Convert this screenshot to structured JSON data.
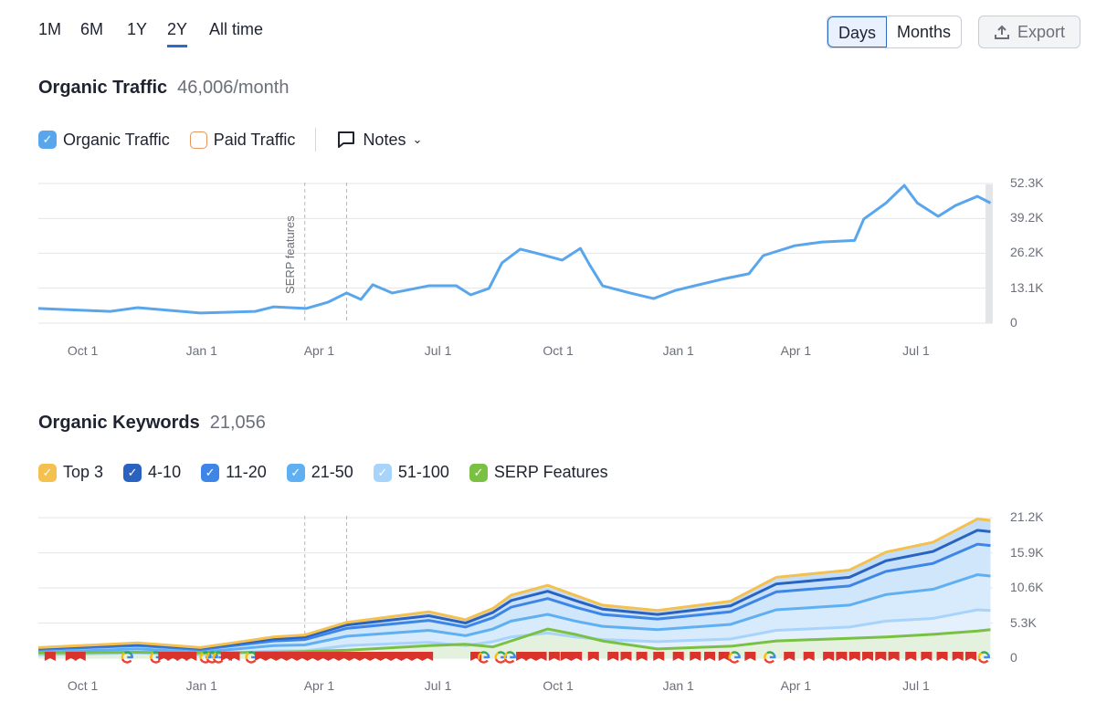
{
  "ranges": [
    "1M",
    "6M",
    "1Y",
    "2Y",
    "All time"
  ],
  "active_range": "2Y",
  "view_toggle": {
    "days": "Days",
    "months": "Months",
    "active": "Days"
  },
  "export_label": "Export",
  "traffic": {
    "title": "Organic Traffic",
    "value": "46,006/month",
    "legend": {
      "organic": "Organic Traffic",
      "paid": "Paid Traffic",
      "notes": "Notes"
    },
    "annotation": "SERP features"
  },
  "keywords": {
    "title": "Organic Keywords",
    "value": "21,056",
    "legend": [
      "Top 3",
      "4-10",
      "11-20",
      "21-50",
      "51-100",
      "SERP Features"
    ]
  },
  "colors": {
    "accent": "#2b6cc4",
    "traffic": "#5aa6ec",
    "top3": "#f4c04e",
    "k4_10": "#2a62c0",
    "k11_20": "#3d86e8",
    "k21_50": "#5fb0f2",
    "k51_100": "#a8d3fb",
    "serp": "#7ac143",
    "flag": "#d9342b"
  },
  "chart_data": [
    {
      "type": "line",
      "title": "Organic Traffic",
      "x_unit": "days from start",
      "x_ticks": [
        {
          "day": 34,
          "label": "Oct 1"
        },
        {
          "day": 125,
          "label": "Jan 1"
        },
        {
          "day": 215,
          "label": "Apr 1"
        },
        {
          "day": 306,
          "label": "Jul 1"
        },
        {
          "day": 398,
          "label": "Oct 1"
        },
        {
          "day": 490,
          "label": "Jan 1"
        },
        {
          "day": 580,
          "label": "Apr 1"
        },
        {
          "day": 672,
          "label": "Jul 1"
        }
      ],
      "y_ticks": [
        {
          "v": 0,
          "label": "0"
        },
        {
          "v": 13.1,
          "label": "13.1K"
        },
        {
          "v": 26.2,
          "label": "26.2K"
        },
        {
          "v": 39.2,
          "label": "39.2K"
        },
        {
          "v": 52.3,
          "label": "52.3K"
        }
      ],
      "ylim": [
        0,
        52.3
      ],
      "y_unit": "thousands",
      "notes_days": [
        204,
        236
      ],
      "series": [
        {
          "name": "Organic Traffic",
          "points": [
            [
              0,
              5.5
            ],
            [
              55,
              4.4
            ],
            [
              76,
              5.8
            ],
            [
              124,
              3.8
            ],
            [
              166,
              4.4
            ],
            [
              180,
              6.1
            ],
            [
              205,
              5.5
            ],
            [
              222,
              7.9
            ],
            [
              236,
              11.3
            ],
            [
              247,
              8.9
            ],
            [
              256,
              14.4
            ],
            [
              271,
              11.3
            ],
            [
              299,
              14
            ],
            [
              320,
              14
            ],
            [
              331,
              10.6
            ],
            [
              345,
              13
            ],
            [
              355,
              22.6
            ],
            [
              369,
              27.7
            ],
            [
              383,
              26
            ],
            [
              401,
              23.6
            ],
            [
              415,
              28
            ],
            [
              422,
              21.9
            ],
            [
              432,
              14
            ],
            [
              453,
              11.3
            ],
            [
              471,
              9.2
            ],
            [
              488,
              12.3
            ],
            [
              523,
              16.4
            ],
            [
              544,
              18.5
            ],
            [
              555,
              25.3
            ],
            [
              579,
              29
            ],
            [
              600,
              30.4
            ],
            [
              625,
              31
            ],
            [
              632,
              39
            ],
            [
              649,
              45
            ],
            [
              663,
              51.6
            ],
            [
              673,
              45
            ],
            [
              689,
              40
            ],
            [
              702,
              44
            ],
            [
              719,
              47.5
            ],
            [
              729,
              45
            ]
          ]
        }
      ]
    },
    {
      "type": "area",
      "title": "Organic Keywords",
      "stacked": true,
      "y_unit": "thousands",
      "ylim": [
        0,
        21.2
      ],
      "y_ticks": [
        {
          "v": 0,
          "label": "0"
        },
        {
          "v": 5.3,
          "label": "5.3K"
        },
        {
          "v": 10.6,
          "label": "10.6K"
        },
        {
          "v": 15.9,
          "label": "15.9K"
        },
        {
          "v": 21.2,
          "label": "21.2K"
        }
      ],
      "x_ticks": [
        {
          "day": 34,
          "label": "Oct 1"
        },
        {
          "day": 125,
          "label": "Jan 1"
        },
        {
          "day": 215,
          "label": "Apr 1"
        },
        {
          "day": 306,
          "label": "Jul 1"
        },
        {
          "day": 398,
          "label": "Oct 1"
        },
        {
          "day": 490,
          "label": "Jan 1"
        },
        {
          "day": 580,
          "label": "Apr 1"
        },
        {
          "day": 672,
          "label": "Jul 1"
        }
      ],
      "days": [
        0,
        76,
        124,
        180,
        204,
        236,
        299,
        327,
        348,
        362,
        390,
        411,
        432,
        474,
        530,
        565,
        621,
        649,
        685,
        719,
        729
      ],
      "series": [
        {
          "name": "51-100",
          "color": "k51_100",
          "values": [
            0.5,
            0.8,
            0.5,
            1.1,
            1.1,
            1.9,
            2.4,
            1.9,
            2.5,
            3.2,
            3.8,
            3.2,
            2.8,
            2.5,
            2.9,
            4.2,
            4.7,
            5.6,
            6.0,
            7.3,
            7.2
          ]
        },
        {
          "name": "21-50",
          "color": "k21_50",
          "values": [
            0.4,
            0.6,
            0.4,
            0.8,
            0.9,
            1.4,
            1.8,
            1.5,
            1.9,
            2.4,
            2.8,
            2.4,
            2.0,
            1.8,
            2.2,
            3.1,
            3.3,
            4.0,
            4.4,
            5.3,
            5.2
          ]
        },
        {
          "name": "11-20",
          "color": "k11_20",
          "values": [
            0.4,
            0.5,
            0.4,
            0.7,
            0.8,
            1.2,
            1.5,
            1.3,
            1.7,
            2.1,
            2.4,
            2.1,
            1.8,
            1.6,
            1.9,
            2.7,
            2.9,
            3.5,
            3.9,
            4.6,
            4.6
          ]
        },
        {
          "name": "4-10",
          "color": "k4_10",
          "values": [
            0.2,
            0.2,
            0.2,
            0.3,
            0.4,
            0.5,
            0.7,
            0.6,
            0.8,
            1.0,
            1.1,
            1.0,
            0.8,
            0.7,
            0.9,
            1.2,
            1.3,
            1.6,
            1.8,
            2.1,
            2.1
          ]
        },
        {
          "name": "Top 3",
          "color": "top3",
          "values": [
            0.1,
            0.2,
            0.1,
            0.3,
            0.3,
            0.4,
            0.6,
            0.5,
            0.6,
            0.8,
            0.9,
            0.8,
            0.6,
            0.6,
            0.7,
            1.0,
            1.1,
            1.3,
            1.4,
            1.7,
            1.7
          ]
        }
      ],
      "serp": {
        "name": "SERP Features",
        "values": [
          0.8,
          0.9,
          0.8,
          0.9,
          1.0,
          1.2,
          1.9,
          2.1,
          1.7,
          2.6,
          4.4,
          3.6,
          2.6,
          1.4,
          1.8,
          2.6,
          3.0,
          3.2,
          3.6,
          4.1,
          4.3
        ]
      },
      "markers": [
        [
          9,
          "flag"
        ],
        [
          25,
          "flag"
        ],
        [
          32,
          "flag"
        ],
        [
          68,
          "google"
        ],
        [
          90,
          "google"
        ],
        [
          96,
          "flag"
        ],
        [
          103,
          "flag"
        ],
        [
          110,
          "flag"
        ],
        [
          117,
          "flag"
        ],
        [
          128,
          "google"
        ],
        [
          133,
          "google"
        ],
        [
          138,
          "google"
        ],
        [
          144,
          "flag"
        ],
        [
          150,
          "flag"
        ],
        [
          163,
          "google"
        ],
        [
          170,
          "flag"
        ],
        [
          178,
          "flag"
        ],
        [
          186,
          "flag"
        ],
        [
          194,
          "flag"
        ],
        [
          202,
          "flag"
        ],
        [
          210,
          "flag"
        ],
        [
          218,
          "flag"
        ],
        [
          226,
          "flag"
        ],
        [
          234,
          "flag"
        ],
        [
          242,
          "flag"
        ],
        [
          250,
          "flag"
        ],
        [
          258,
          "flag"
        ],
        [
          266,
          "flag"
        ],
        [
          274,
          "flag"
        ],
        [
          282,
          "flag"
        ],
        [
          290,
          "flag"
        ],
        [
          298,
          "flag"
        ],
        [
          335,
          "flag"
        ],
        [
          341,
          "google"
        ],
        [
          354,
          "google"
        ],
        [
          361,
          "google"
        ],
        [
          370,
          "flag"
        ],
        [
          377,
          "flag"
        ],
        [
          385,
          "flag"
        ],
        [
          395,
          "flag"
        ],
        [
          404,
          "flag"
        ],
        [
          412,
          "flag"
        ],
        [
          425,
          "flag"
        ],
        [
          440,
          "flag"
        ],
        [
          450,
          "flag"
        ],
        [
          462,
          "flag"
        ],
        [
          475,
          "flag"
        ],
        [
          490,
          "flag"
        ],
        [
          503,
          "flag"
        ],
        [
          514,
          "flag"
        ],
        [
          525,
          "flag"
        ],
        [
          533,
          "google"
        ],
        [
          545,
          "flag"
        ],
        [
          560,
          "google"
        ],
        [
          575,
          "flag"
        ],
        [
          590,
          "flag"
        ],
        [
          605,
          "flag"
        ],
        [
          615,
          "flag"
        ],
        [
          625,
          "flag"
        ],
        [
          635,
          "flag"
        ],
        [
          645,
          "flag"
        ],
        [
          655,
          "flag"
        ],
        [
          668,
          "flag"
        ],
        [
          680,
          "flag"
        ],
        [
          692,
          "flag"
        ],
        [
          704,
          "flag"
        ],
        [
          714,
          "flag"
        ],
        [
          724,
          "google"
        ]
      ]
    }
  ]
}
